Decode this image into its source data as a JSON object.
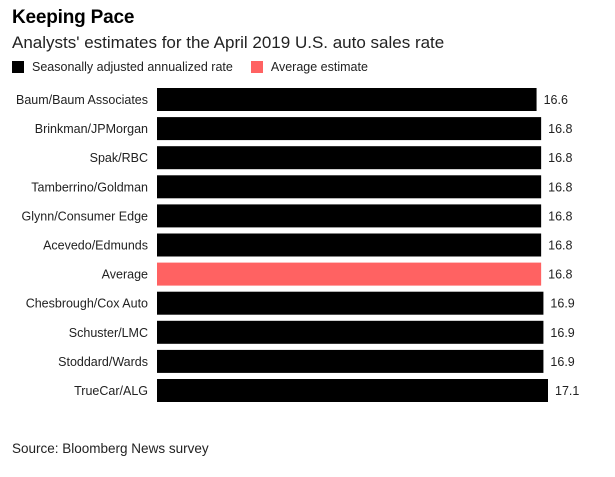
{
  "chart_data": {
    "type": "bar",
    "orientation": "horizontal",
    "title": "Keeping Pace",
    "subtitle": "Analysts' estimates for the April 2019 U.S. auto sales rate",
    "legend": [
      {
        "label": "Seasonally adjusted annualized rate",
        "color": "#000000"
      },
      {
        "label": "Average estimate",
        "color": "#ff6262"
      }
    ],
    "categories": [
      "Baum/Baum Associates",
      "Brinkman/JPMorgan",
      "Spak/RBC",
      "Tamberrino/Goldman",
      "Glynn/Consumer Edge",
      "Acevedo/Edmunds",
      "Average",
      "Chesbrough/Cox Auto",
      "Schuster/LMC",
      "Stoddard/Wards",
      "TrueCar/ALG"
    ],
    "values": [
      16.6,
      16.8,
      16.8,
      16.8,
      16.8,
      16.8,
      16.8,
      16.9,
      16.9,
      16.9,
      17.1
    ],
    "value_labels": [
      "16.6",
      "16.8",
      "16.8",
      "16.8",
      "16.8",
      "16.8",
      "16.8",
      "16.9",
      "16.9",
      "16.9",
      "17.1"
    ],
    "highlight": [
      "Average"
    ],
    "xlim": [
      0,
      17.1
    ],
    "source": "Source: Bloomberg News survey"
  }
}
